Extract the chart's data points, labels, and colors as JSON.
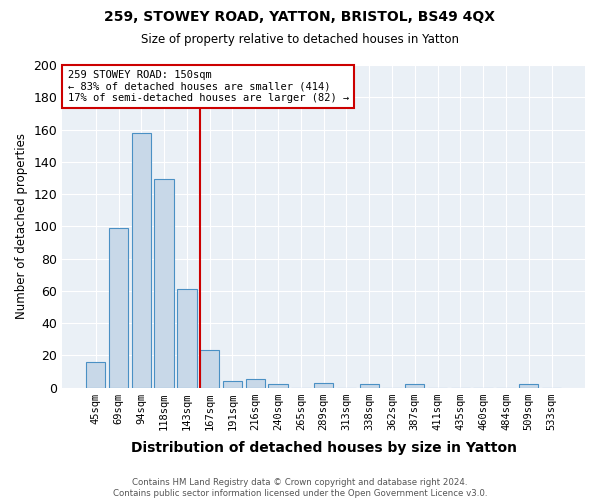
{
  "title": "259, STOWEY ROAD, YATTON, BRISTOL, BS49 4QX",
  "subtitle": "Size of property relative to detached houses in Yatton",
  "xlabel": "Distribution of detached houses by size in Yatton",
  "ylabel": "Number of detached properties",
  "footer1": "Contains HM Land Registry data © Crown copyright and database right 2024.",
  "footer2": "Contains public sector information licensed under the Open Government Licence v3.0.",
  "bins": [
    "45sqm",
    "69sqm",
    "94sqm",
    "118sqm",
    "143sqm",
    "167sqm",
    "191sqm",
    "216sqm",
    "240sqm",
    "265sqm",
    "289sqm",
    "313sqm",
    "338sqm",
    "362sqm",
    "387sqm",
    "411sqm",
    "435sqm",
    "460sqm",
    "484sqm",
    "509sqm",
    "533sqm"
  ],
  "values": [
    16,
    99,
    158,
    129,
    61,
    23,
    4,
    5,
    2,
    0,
    3,
    0,
    2,
    0,
    2,
    0,
    0,
    0,
    0,
    2,
    0
  ],
  "bar_color": "#c8d8e8",
  "bar_edge_color": "#4a90c4",
  "marker_color": "#cc0000",
  "annotation_text": "259 STOWEY ROAD: 150sqm\n← 83% of detached houses are smaller (414)\n17% of semi-detached houses are larger (82) →",
  "annotation_box_color": "#ffffff",
  "annotation_box_edge": "#cc0000",
  "ylim": [
    0,
    200
  ],
  "yticks": [
    0,
    20,
    40,
    60,
    80,
    100,
    120,
    140,
    160,
    180,
    200
  ],
  "background_color": "#eaf0f6"
}
